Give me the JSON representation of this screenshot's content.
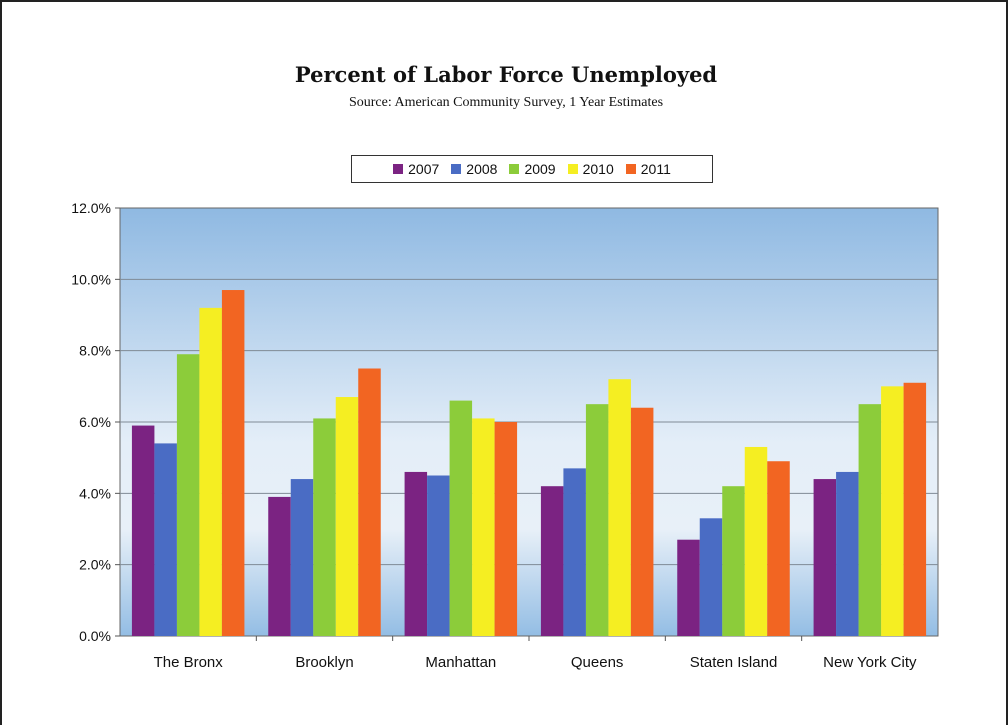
{
  "chart_data": {
    "type": "bar",
    "title": "Percent of Labor Force Unemployed",
    "subtitle": "Source: American Community Survey, 1 Year Estimates",
    "xlabel": "",
    "ylabel": "",
    "ylim": [
      0,
      12
    ],
    "y_ticks": [
      "0.0%",
      "2.0%",
      "4.0%",
      "6.0%",
      "8.0%",
      "10.0%",
      "12.0%"
    ],
    "grid": true,
    "legend_position": "top",
    "categories": [
      "The Bronx",
      "Brooklyn",
      "Manhattan",
      "Queens",
      "Staten Island",
      "New York City"
    ],
    "series": [
      {
        "name": "2007",
        "color": "#7b2382",
        "values": [
          5.9,
          3.9,
          4.6,
          4.2,
          2.7,
          4.4
        ]
      },
      {
        "name": "2008",
        "color": "#4a6cc4",
        "values": [
          5.4,
          4.4,
          4.5,
          4.7,
          3.3,
          4.6
        ]
      },
      {
        "name": "2009",
        "color": "#8ccc3a",
        "values": [
          7.9,
          6.1,
          6.6,
          6.5,
          4.2,
          6.5
        ]
      },
      {
        "name": "2010",
        "color": "#f5ee22",
        "values": [
          9.2,
          6.7,
          6.1,
          7.2,
          5.3,
          7.0
        ]
      },
      {
        "name": "2011",
        "color": "#f26522",
        "values": [
          9.7,
          7.5,
          6.0,
          6.4,
          4.9,
          7.1
        ]
      }
    ]
  }
}
